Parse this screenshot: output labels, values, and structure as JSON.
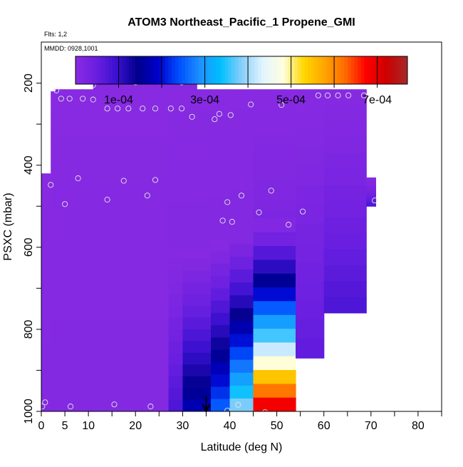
{
  "chart_data": {
    "type": "heatmap",
    "title": "ATOM3 Northeast_Pacific_1 Propene_GMI",
    "flights_label": "Flts: 1,2",
    "dates_label": "MMDD: 0928,1001",
    "xlabel": "Latitude (deg N)",
    "ylabel": "PSXC (mbar)",
    "xlim": [
      0,
      85
    ],
    "ylim": [
      1000,
      100
    ],
    "x_ticks": [
      0,
      5,
      10,
      20,
      30,
      40,
      50,
      60,
      70,
      80
    ],
    "x_tick_labels": [
      "0",
      "5",
      "10",
      "20",
      "30",
      "40",
      "50",
      "60",
      "70",
      "80"
    ],
    "y_ticks": [
      200,
      400,
      600,
      800,
      1000
    ],
    "y_tick_labels": [
      "200",
      "400",
      "600",
      "800",
      "1000"
    ],
    "colorbar": {
      "vmin": 0,
      "vmax": 0.00077,
      "tick_values": [
        0.0001,
        0.0003,
        0.0005,
        0.0007
      ],
      "tick_labels": [
        "1e-04",
        "3e-04",
        "5e-04",
        "7e-04"
      ],
      "colors": [
        "#8a2be2",
        "#6a1fe0",
        "#3a10d0",
        "#00008b",
        "#0000cd",
        "#0050ff",
        "#1e90ff",
        "#00bfff",
        "#87cefa",
        "#e0f4ff",
        "#ffffe0",
        "#ffd700",
        "#ffa500",
        "#ff6a00",
        "#ff0000",
        "#cd0000",
        "#a52a2a"
      ]
    },
    "marker_latitude": 35,
    "columns": [
      {
        "lat": [
          0,
          2
        ],
        "ptop": 420,
        "pbot": 1000,
        "max": 1e-05
      },
      {
        "lat": [
          2,
          3
        ],
        "ptop": 220,
        "pbot": 1000,
        "max": 1e-05
      },
      {
        "lat": [
          11,
          26
        ],
        "ptop": 180,
        "pbot": 215,
        "max": 5e-06
      },
      {
        "lat": [
          26,
          33
        ],
        "ptop": 185,
        "pbot": 215,
        "max": 5e-06
      },
      {
        "lat": [
          3,
          27
        ],
        "ptop": 215,
        "pbot": 1000,
        "max": 1e-05
      },
      {
        "lat": [
          27,
          30
        ],
        "ptop": 215,
        "pbot": 600,
        "max": 1e-05
      },
      {
        "lat": [
          27,
          30
        ],
        "ptop": 600,
        "pbot": 1000,
        "max": 8e-05
      },
      {
        "lat": [
          30,
          36
        ],
        "ptop": 215,
        "pbot": 600,
        "max": 1e-05
      },
      {
        "lat": [
          30,
          36
        ],
        "ptop": 600,
        "pbot": 1000,
        "max": 0.00018
      },
      {
        "lat": [
          36,
          40
        ],
        "ptop": 215,
        "pbot": 580,
        "max": 1e-05
      },
      {
        "lat": [
          36,
          40
        ],
        "ptop": 580,
        "pbot": 1000,
        "max": 0.00026
      },
      {
        "lat": [
          40,
          45
        ],
        "ptop": 215,
        "pbot": 560,
        "max": 1e-05
      },
      {
        "lat": [
          40,
          45
        ],
        "ptop": 560,
        "pbot": 1000,
        "max": 0.0004
      },
      {
        "lat": [
          45,
          54
        ],
        "ptop": 215,
        "pbot": 530,
        "max": 2e-05
      },
      {
        "lat": [
          45,
          54
        ],
        "ptop": 530,
        "pbot": 1000,
        "max": 0.00072
      },
      {
        "lat": [
          54,
          60
        ],
        "ptop": 215,
        "pbot": 870,
        "max": 6e-05
      },
      {
        "lat": [
          60,
          69
        ],
        "ptop": 215,
        "pbot": 760,
        "max": 8e-05
      },
      {
        "lat": [
          69,
          71
        ],
        "ptop": 430,
        "pbot": 500,
        "max": 8e-05
      }
    ],
    "points": [
      {
        "lat": 0.2,
        "p": 988
      },
      {
        "lat": 0.8,
        "p": 978
      },
      {
        "lat": 3.2,
        "p": 218
      },
      {
        "lat": 2.0,
        "p": 448
      },
      {
        "lat": 4.2,
        "p": 238
      },
      {
        "lat": 5.0,
        "p": 495
      },
      {
        "lat": 6.0,
        "p": 238
      },
      {
        "lat": 7.8,
        "p": 432
      },
      {
        "lat": 8.8,
        "p": 238
      },
      {
        "lat": 11.0,
        "p": 205
      },
      {
        "lat": 11.0,
        "p": 240
      },
      {
        "lat": 14.0,
        "p": 262
      },
      {
        "lat": 14.0,
        "p": 484
      },
      {
        "lat": 16.2,
        "p": 262
      },
      {
        "lat": 17.5,
        "p": 438
      },
      {
        "lat": 18.5,
        "p": 262
      },
      {
        "lat": 20.0,
        "p": 198
      },
      {
        "lat": 21.5,
        "p": 262
      },
      {
        "lat": 22.5,
        "p": 474
      },
      {
        "lat": 24.2,
        "p": 262
      },
      {
        "lat": 24.2,
        "p": 436
      },
      {
        "lat": 26.5,
        "p": 188
      },
      {
        "lat": 27.5,
        "p": 262
      },
      {
        "lat": 29.8,
        "p": 198
      },
      {
        "lat": 29.8,
        "p": 262
      },
      {
        "lat": 32.0,
        "p": 282
      },
      {
        "lat": 6.2,
        "p": 988
      },
      {
        "lat": 15.5,
        "p": 983
      },
      {
        "lat": 23.2,
        "p": 988
      },
      {
        "lat": 36.8,
        "p": 288
      },
      {
        "lat": 37.8,
        "p": 275
      },
      {
        "lat": 38.5,
        "p": 535
      },
      {
        "lat": 39.5,
        "p": 490
      },
      {
        "lat": 40.2,
        "p": 278
      },
      {
        "lat": 40.5,
        "p": 538
      },
      {
        "lat": 42.5,
        "p": 474
      },
      {
        "lat": 44.5,
        "p": 252
      },
      {
        "lat": 46.2,
        "p": 515
      },
      {
        "lat": 48.8,
        "p": 462
      },
      {
        "lat": 51.0,
        "p": 253
      },
      {
        "lat": 52.5,
        "p": 545
      },
      {
        "lat": 55.5,
        "p": 513
      },
      {
        "lat": 58.8,
        "p": 230
      },
      {
        "lat": 60.8,
        "p": 230
      },
      {
        "lat": 63.0,
        "p": 230
      },
      {
        "lat": 65.2,
        "p": 230
      },
      {
        "lat": 68.5,
        "p": 230
      },
      {
        "lat": 70.8,
        "p": 486
      },
      {
        "lat": 39.5,
        "p": 998
      },
      {
        "lat": 41.8,
        "p": 984
      },
      {
        "lat": 47.5,
        "p": 1002
      }
    ]
  }
}
